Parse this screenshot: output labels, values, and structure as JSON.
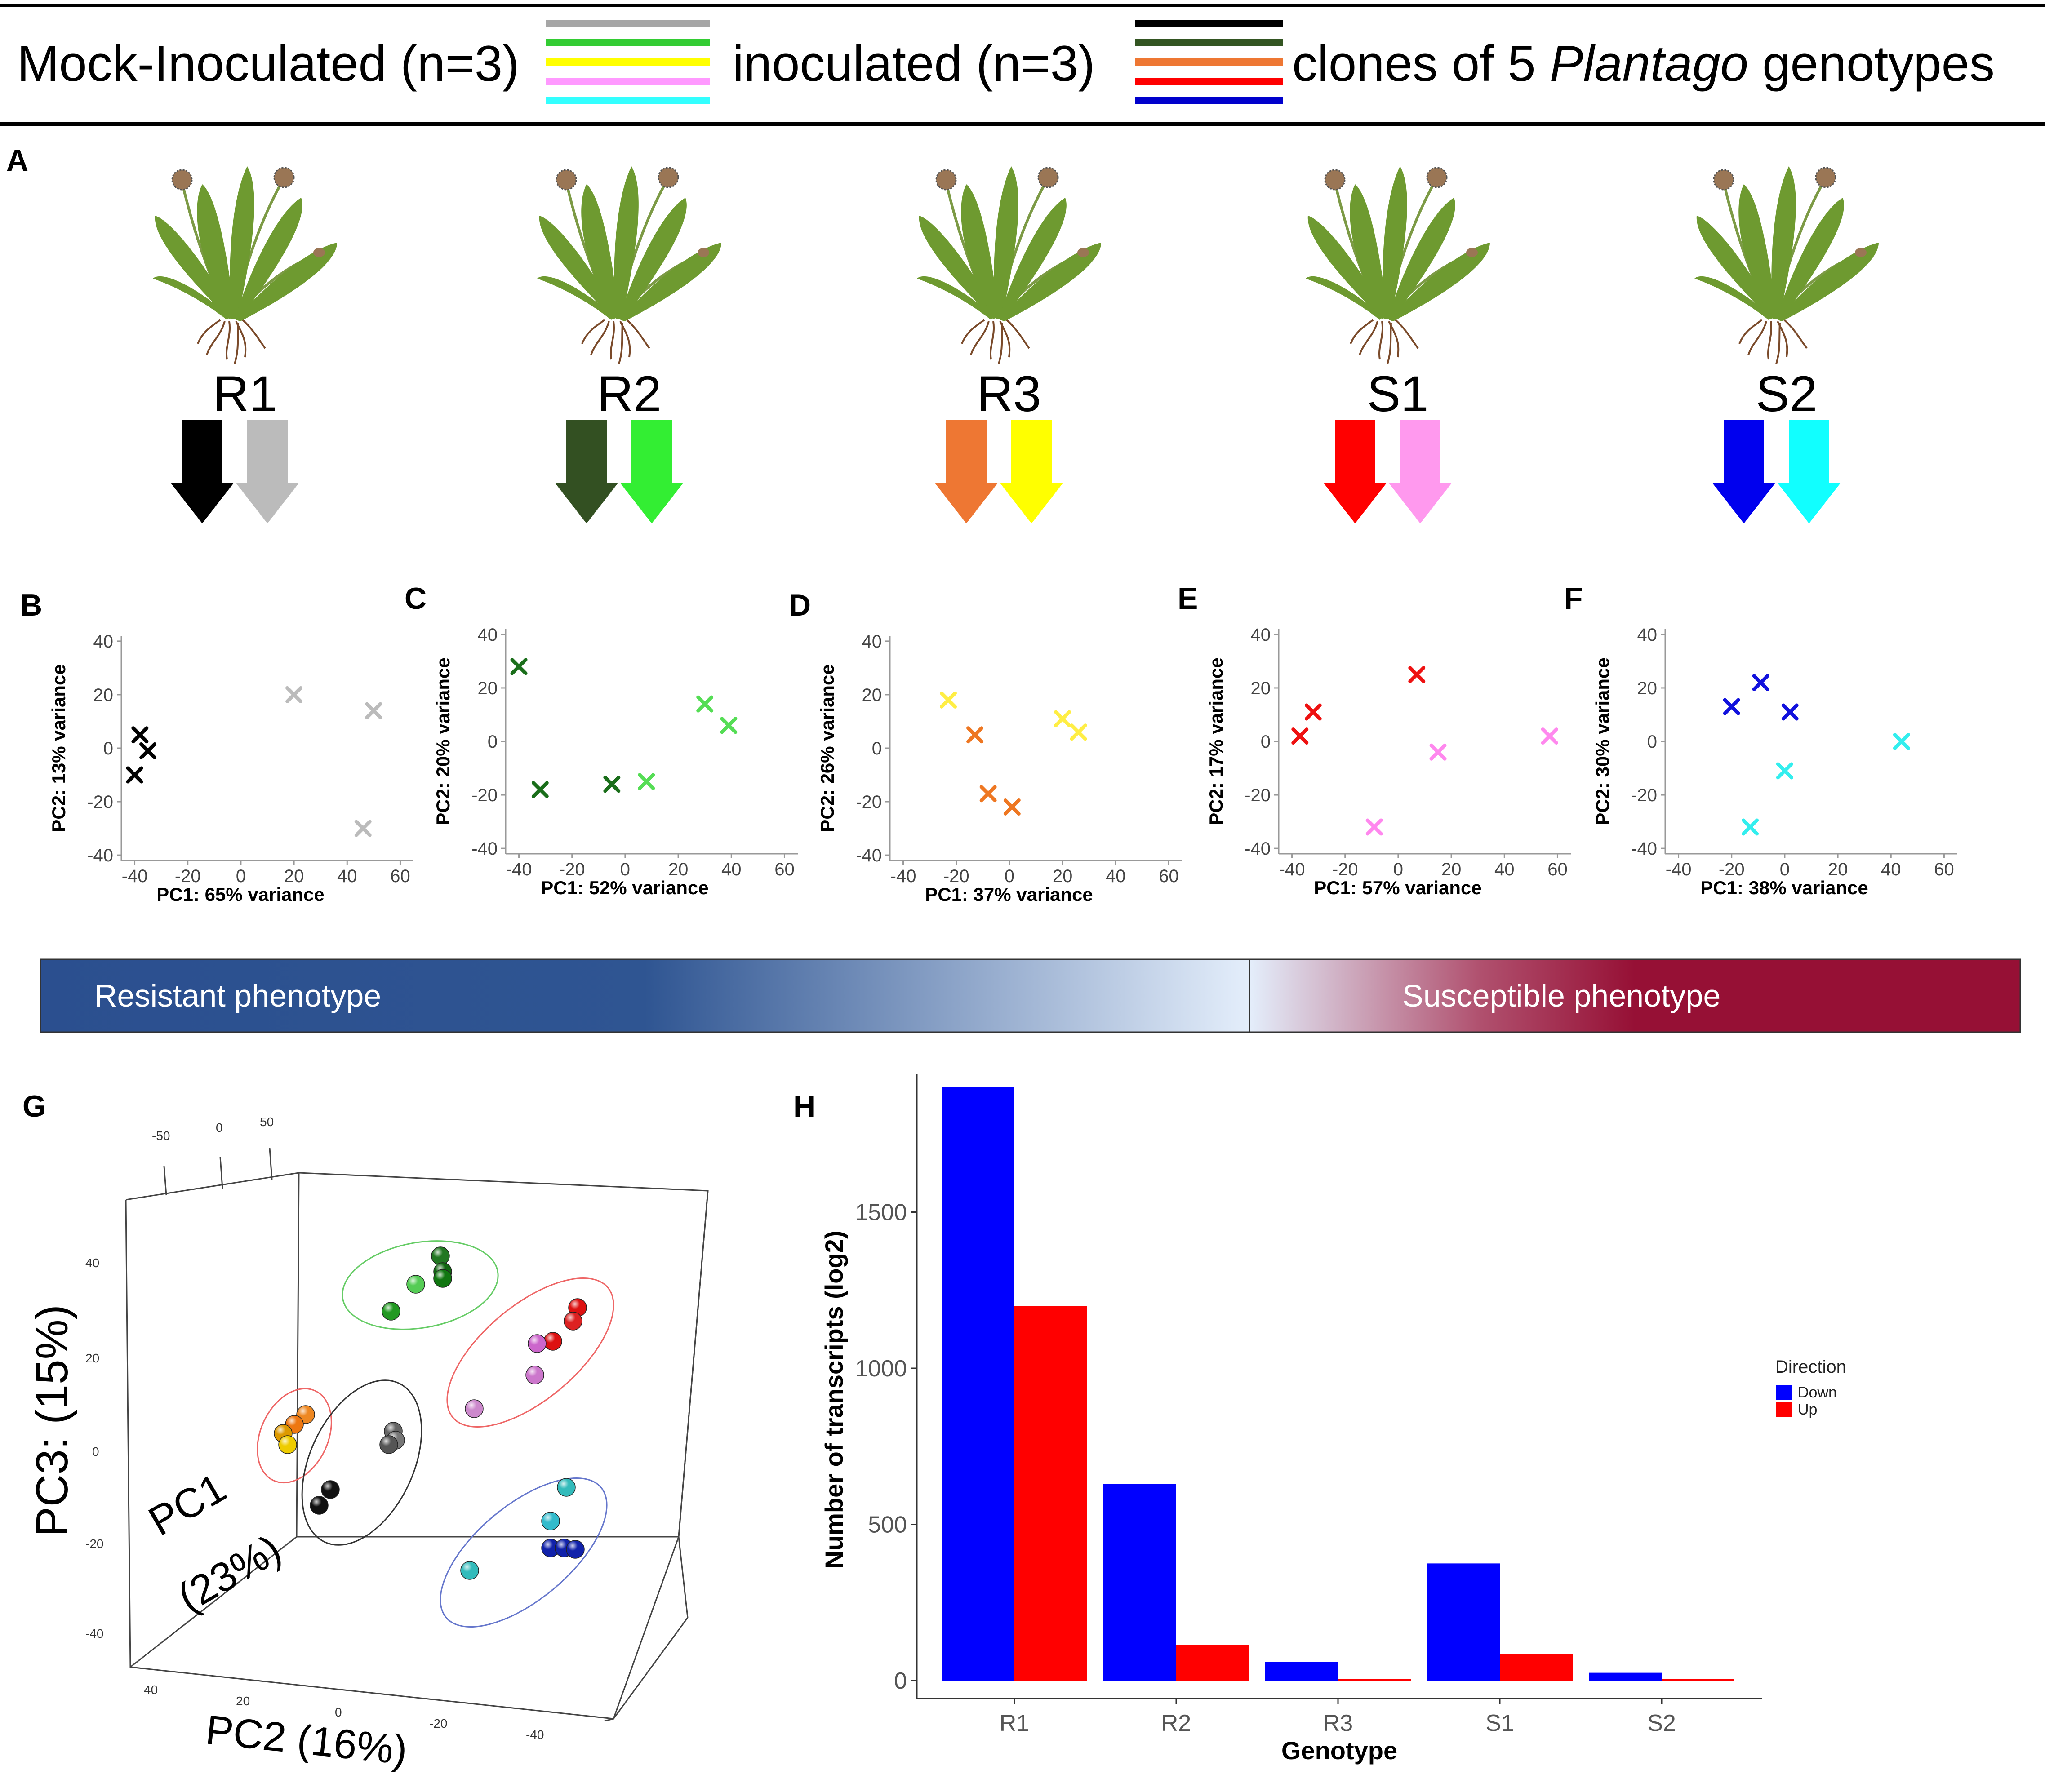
{
  "legend": {
    "mock_label": "Mock-Inoculated (n=3)",
    "inoc_label": "inoculated (n=3)",
    "clones_label_prefix": "clones of 5 ",
    "clones_label_italic": "Plantago",
    "clones_label_suffix": " genotypes",
    "mock_colors": [
      "#a6a6a6",
      "#33cc33",
      "#ffff00",
      "#ff99ff",
      "#33ffff"
    ],
    "inoc_colors": [
      "#000000",
      "#335522",
      "#ee7733",
      "#ff0000",
      "#0000cc"
    ]
  },
  "panel_a": {
    "letter": "A",
    "genotypes": [
      {
        "label": "R1",
        "inoc_color": "#000000",
        "mock_color": "#bbbbbb"
      },
      {
        "label": "R2",
        "inoc_color": "#335022",
        "mock_color": "#33ee33"
      },
      {
        "label": "R3",
        "inoc_color": "#ee7733",
        "mock_color": "#ffff00"
      },
      {
        "label": "S1",
        "inoc_color": "#ff0000",
        "mock_color": "#ff99ee"
      },
      {
        "label": "S2",
        "inoc_color": "#0000ee",
        "mock_color": "#11ffff"
      }
    ]
  },
  "pca_panels": [
    {
      "letter": "B",
      "xlabel": "PC1: 65% variance",
      "ylabel": "PC2: 13% variance",
      "xlim": [
        -45,
        65
      ],
      "ylim": [
        -42,
        42
      ],
      "xticks": [
        -40,
        -20,
        0,
        20,
        40,
        60
      ],
      "yticks": [
        -40,
        -20,
        0,
        20,
        40
      ],
      "points": [
        {
          "x": -40,
          "y": -10,
          "c": "#000000"
        },
        {
          "x": -38,
          "y": 5,
          "c": "#000000"
        },
        {
          "x": -35,
          "y": -1,
          "c": "#000000"
        },
        {
          "x": 20,
          "y": 20,
          "c": "#bbbbbb"
        },
        {
          "x": 50,
          "y": 14,
          "c": "#bbbbbb"
        },
        {
          "x": 46,
          "y": -30,
          "c": "#bbbbbb"
        }
      ]
    },
    {
      "letter": "C",
      "xlabel": "PC1: 52% variance",
      "ylabel": "PC2: 20% variance",
      "xlim": [
        -45,
        65
      ],
      "ylim": [
        -42,
        42
      ],
      "xticks": [
        -40,
        -20,
        0,
        20,
        40,
        60
      ],
      "yticks": [
        -40,
        -20,
        0,
        20,
        40
      ],
      "points": [
        {
          "x": -40,
          "y": 28,
          "c": "#1a6e1a"
        },
        {
          "x": -32,
          "y": -18,
          "c": "#1a6e1a"
        },
        {
          "x": -5,
          "y": -16,
          "c": "#1a6e1a"
        },
        {
          "x": 8,
          "y": -15,
          "c": "#55dd55"
        },
        {
          "x": 30,
          "y": 14,
          "c": "#55dd55"
        },
        {
          "x": 39,
          "y": 6,
          "c": "#55dd55"
        }
      ]
    },
    {
      "letter": "D",
      "xlabel": "PC1: 37% variance",
      "ylabel": "PC2: 26% variance",
      "xlim": [
        -45,
        65
      ],
      "ylim": [
        -42,
        42
      ],
      "xticks": [
        -40,
        -20,
        0,
        20,
        40,
        60
      ],
      "yticks": [
        -40,
        -20,
        0,
        20,
        40
      ],
      "points": [
        {
          "x": -23,
          "y": 18,
          "c": "#ffee44"
        },
        {
          "x": 20,
          "y": 11,
          "c": "#ffee44"
        },
        {
          "x": 26,
          "y": 6,
          "c": "#ffee44"
        },
        {
          "x": -13,
          "y": 5,
          "c": "#ee7722"
        },
        {
          "x": -8,
          "y": -17,
          "c": "#ee7722"
        },
        {
          "x": 1,
          "y": -22,
          "c": "#ee7722"
        }
      ]
    },
    {
      "letter": "E",
      "xlabel": "PC1: 57% variance",
      "ylabel": "PC2: 17% variance",
      "xlim": [
        -45,
        65
      ],
      "ylim": [
        -42,
        42
      ],
      "xticks": [
        -40,
        -20,
        0,
        20,
        40,
        60
      ],
      "yticks": [
        -40,
        -20,
        0,
        20,
        40
      ],
      "points": [
        {
          "x": -37,
          "y": 2,
          "c": "#ee1111"
        },
        {
          "x": -32,
          "y": 11,
          "c": "#ee1111"
        },
        {
          "x": 7,
          "y": 25,
          "c": "#ee1111"
        },
        {
          "x": -9,
          "y": -32,
          "c": "#ff88ee"
        },
        {
          "x": 15,
          "y": -4,
          "c": "#ff88ee"
        },
        {
          "x": 57,
          "y": 2,
          "c": "#ff88ee"
        }
      ]
    },
    {
      "letter": "F",
      "xlabel": "PC1: 38% variance",
      "ylabel": "PC2: 30% variance",
      "xlim": [
        -45,
        65
      ],
      "ylim": [
        -42,
        42
      ],
      "xticks": [
        -40,
        -20,
        0,
        20,
        40,
        60
      ],
      "yticks": [
        -40,
        -20,
        0,
        20,
        40
      ],
      "points": [
        {
          "x": -20,
          "y": 13,
          "c": "#1111dd"
        },
        {
          "x": -9,
          "y": 22,
          "c": "#1111dd"
        },
        {
          "x": 2,
          "y": 11,
          "c": "#1111dd"
        },
        {
          "x": 0,
          "y": -11,
          "c": "#33eeee"
        },
        {
          "x": -13,
          "y": -32,
          "c": "#33eeee"
        },
        {
          "x": 44,
          "y": 0,
          "c": "#33eeee"
        }
      ]
    }
  ],
  "phenotype_bar": {
    "resistant_label": "Resistant phenotype",
    "susceptible_label": "Susceptible phenotype",
    "resistant_color": "#2b4f8f",
    "susceptible_color": "#961035"
  },
  "panel_g": {
    "letter": "G",
    "pc1_label_line1": "PC1",
    "pc1_label_line2": "(23%)",
    "pc2_label": "PC2 (16%)",
    "pc3_label": "PC3: (15%)",
    "top_ticks": [
      "-50",
      "0",
      "50"
    ],
    "left_ticks": [
      "40",
      "20",
      "0",
      "-20",
      "-40"
    ],
    "bottom_ticks": [
      "40",
      "20",
      "0",
      "-20",
      "-40"
    ],
    "clusters": [
      {
        "name": "green",
        "ring": "#66cc66",
        "spheres": [
          "#229922",
          "#55cc55",
          "#227722",
          "#116611",
          "#117711"
        ]
      },
      {
        "name": "red-pink",
        "ring": "#ee6666",
        "spheres": [
          "#dd1111",
          "#dd2222",
          "#dd1111",
          "#cc66cc",
          "#cc77cc",
          "#cc88cc"
        ]
      },
      {
        "name": "orange-yellow",
        "ring": "#ee6666",
        "spheres": [
          "#ee8822",
          "#ee7711",
          "#dd9900",
          "#eecc00"
        ]
      },
      {
        "name": "black-grey",
        "ring": "#333333",
        "spheres": [
          "#666666",
          "#777777",
          "#555555",
          "#111111",
          "#111111"
        ]
      },
      {
        "name": "blue-cyan",
        "ring": "#6677cc",
        "spheres": [
          "#33bbbb",
          "#33bbcc",
          "#1122aa",
          "#1122aa",
          "#1122aa",
          "#33bbbb"
        ]
      }
    ]
  },
  "chart_data": {
    "type": "bar",
    "panel_letter": "H",
    "title": "",
    "xlabel": "Genotype",
    "ylabel": "Number of transcripts (log2)",
    "categories": [
      "R1",
      "R2",
      "R3",
      "S1",
      "S2"
    ],
    "series": [
      {
        "name": "Down",
        "color": "#0000ff",
        "values": [
          1900,
          630,
          60,
          375,
          25
        ]
      },
      {
        "name": "Up",
        "color": "#ff0000",
        "values": [
          1200,
          115,
          5,
          85,
          5
        ]
      }
    ],
    "ylim": [
      0,
      2000
    ],
    "yticks": [
      0,
      500,
      1000,
      1500
    ],
    "legend_title": "Direction",
    "legend_position": "right",
    "grid": false
  }
}
